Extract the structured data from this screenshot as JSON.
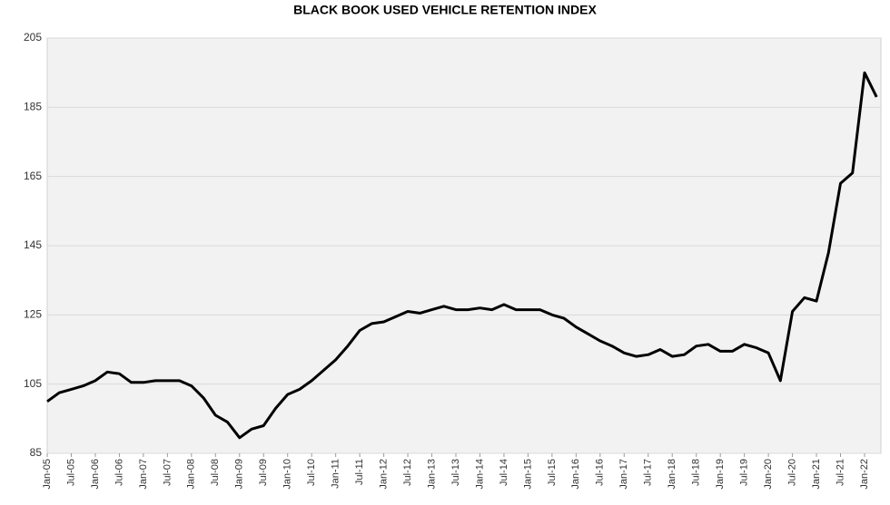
{
  "chart_data": {
    "type": "line",
    "title": "BLACK BOOK USED VEHICLE RETENTION INDEX",
    "categories": [
      "Jan-05",
      null,
      "Jul-05",
      null,
      "Jan-06",
      null,
      "Jul-06",
      null,
      "Jan-07",
      null,
      "Jul-07",
      null,
      "Jan-08",
      null,
      "Jul-08",
      null,
      "Jan-09",
      null,
      "Jul-09",
      null,
      "Jan-10",
      null,
      "Jul-10",
      null,
      "Jan-11",
      null,
      "Jul-11",
      null,
      "Jan-12",
      null,
      "Jul-12",
      null,
      "Jan-13",
      null,
      "Jul-13",
      null,
      "Jan-14",
      null,
      "Jul-14",
      null,
      "Jan-15",
      null,
      "Jul-15",
      null,
      "Jan-16",
      null,
      "Jul-16",
      null,
      "Jan-17",
      null,
      "Jul-17",
      null,
      "Jan-18",
      null,
      "Jul-18",
      null,
      "Jan-19",
      null,
      "Jul-19",
      null,
      "Jan-20",
      null,
      "Jul-20",
      null,
      "Jan-21",
      null,
      "Jul-21",
      null,
      "Jan-22",
      null
    ],
    "values": [
      100,
      102.5,
      103.5,
      104.5,
      106,
      108.5,
      108,
      105.5,
      105.5,
      106,
      106,
      106,
      104.5,
      101,
      96,
      94,
      89.5,
      92,
      93,
      98,
      102,
      103.5,
      106,
      109,
      112,
      116,
      120.5,
      122.5,
      123,
      124.5,
      126,
      125.5,
      126.5,
      127.5,
      126.5,
      126.5,
      127,
      126.5,
      128,
      126.5,
      126.5,
      126.5,
      125,
      124,
      121.5,
      119.5,
      117.5,
      116,
      114,
      113,
      113.5,
      115,
      113,
      113.5,
      116,
      116.5,
      114.5,
      114.5,
      116.5,
      115.5,
      114,
      106,
      126,
      130,
      129,
      143,
      163,
      166,
      195,
      188
    ],
    "color": "#000000",
    "ylim": [
      85,
      205
    ],
    "yticks": [
      85,
      105,
      125,
      145,
      165,
      185,
      205
    ],
    "grid": true
  }
}
